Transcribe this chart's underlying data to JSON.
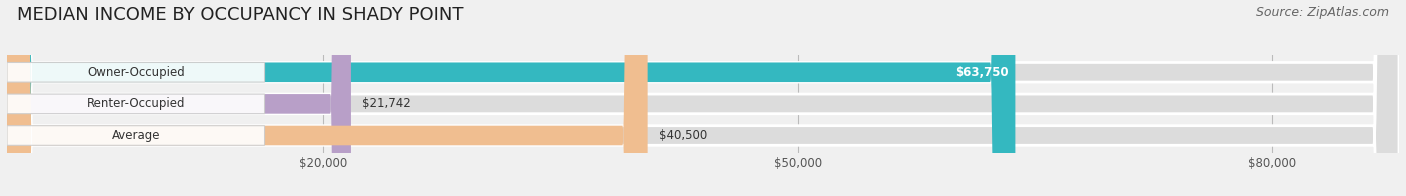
{
  "title": "MEDIAN INCOME BY OCCUPANCY IN SHADY POINT",
  "source": "Source: ZipAtlas.com",
  "categories": [
    "Owner-Occupied",
    "Renter-Occupied",
    "Average"
  ],
  "values": [
    63750,
    21742,
    40500
  ],
  "labels": [
    "$63,750",
    "$21,742",
    "$40,500"
  ],
  "bar_colors": [
    "#34b8c0",
    "#b89fc8",
    "#f0be90"
  ],
  "background_color": "#f0f0f0",
  "bar_bg_color": "#dcdcdc",
  "xlim_max": 88000,
  "xticks": [
    20000,
    50000,
    80000
  ],
  "xtick_labels": [
    "$20,000",
    "$50,000",
    "$80,000"
  ],
  "title_fontsize": 13,
  "source_fontsize": 9,
  "value_fontsize": 8.5,
  "category_fontsize": 8.5,
  "bar_height": 0.62
}
